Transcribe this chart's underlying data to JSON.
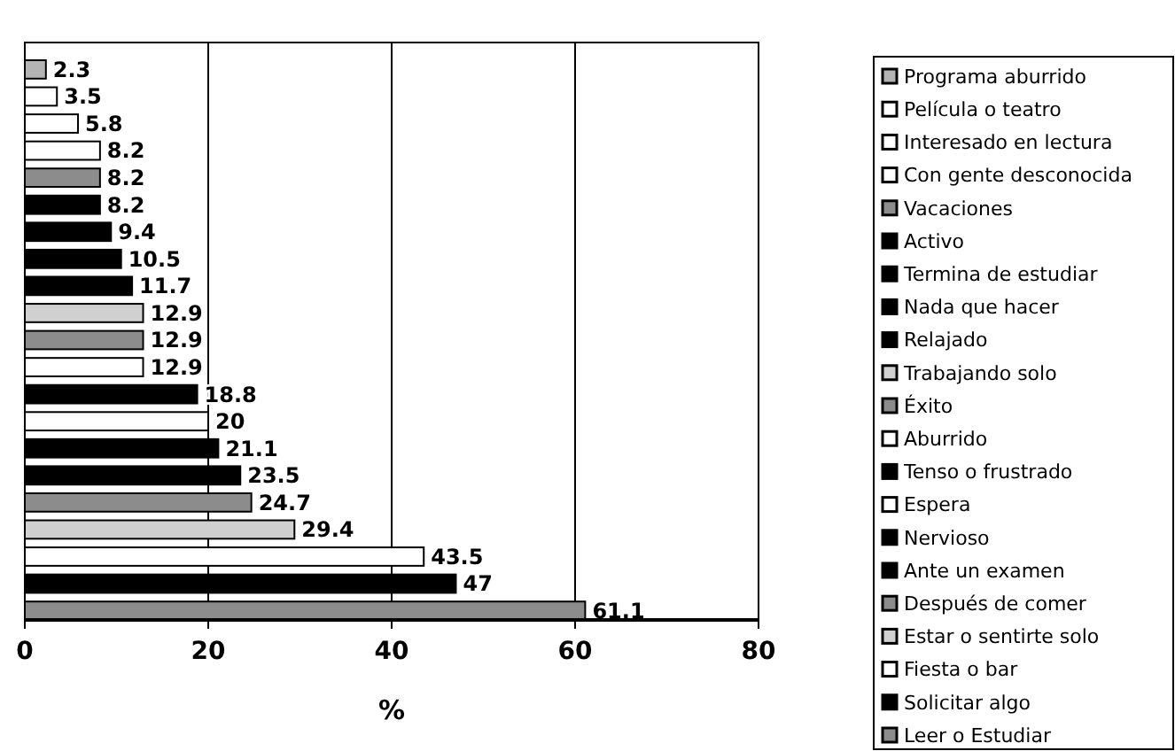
{
  "chart_data": {
    "type": "bar",
    "orientation": "horizontal",
    "xlabel": "%",
    "categories": [
      null,
      null,
      null,
      null,
      null,
      null,
      null,
      null,
      null,
      null,
      null,
      null,
      null,
      null,
      null,
      null,
      null,
      null,
      null,
      null,
      null
    ],
    "series": [
      {
        "name": "Programa aburrido",
        "color": "#b4b4b4",
        "values": [
          2.3,
          null,
          null,
          null,
          null,
          null,
          null,
          null,
          null,
          null,
          null,
          null,
          null,
          null,
          null,
          null,
          null,
          null,
          null,
          null,
          null
        ]
      },
      {
        "name": "Película o teatro",
        "color": "#ffffff",
        "values": [
          null,
          3.5,
          null,
          null,
          null,
          null,
          null,
          null,
          null,
          null,
          null,
          null,
          null,
          null,
          null,
          null,
          null,
          null,
          null,
          null,
          null
        ]
      },
      {
        "name": "Interesado en lectura",
        "color": "#ffffff",
        "values": [
          null,
          null,
          5.8,
          null,
          null,
          null,
          null,
          null,
          null,
          null,
          null,
          null,
          null,
          null,
          null,
          null,
          null,
          null,
          null,
          null,
          null
        ]
      },
      {
        "name": "Con gente desconocida",
        "color": "#ffffff",
        "values": [
          null,
          null,
          null,
          8.2,
          null,
          null,
          null,
          null,
          null,
          null,
          null,
          null,
          null,
          null,
          null,
          null,
          null,
          null,
          null,
          null,
          null
        ]
      },
      {
        "name": "Vacaciones",
        "color": "#8c8c8c",
        "values": [
          null,
          null,
          null,
          null,
          8.2,
          null,
          null,
          null,
          null,
          null,
          null,
          null,
          null,
          null,
          null,
          null,
          null,
          null,
          null,
          null,
          null
        ]
      },
      {
        "name": "Activo",
        "color": "#000000",
        "values": [
          null,
          null,
          null,
          null,
          null,
          8.2,
          null,
          null,
          null,
          null,
          null,
          null,
          null,
          null,
          null,
          null,
          null,
          null,
          null,
          null,
          null
        ]
      },
      {
        "name": "Termina de estudiar",
        "color": "#000000",
        "values": [
          null,
          null,
          null,
          null,
          null,
          null,
          9.4,
          null,
          null,
          null,
          null,
          null,
          null,
          null,
          null,
          null,
          null,
          null,
          null,
          null,
          null
        ]
      },
      {
        "name": "Nada que hacer",
        "color": "#000000",
        "values": [
          null,
          null,
          null,
          null,
          null,
          null,
          null,
          10.5,
          null,
          null,
          null,
          null,
          null,
          null,
          null,
          null,
          null,
          null,
          null,
          null,
          null
        ]
      },
      {
        "name": "Relajado",
        "color": "#000000",
        "values": [
          null,
          null,
          null,
          null,
          null,
          null,
          null,
          null,
          11.7,
          null,
          null,
          null,
          null,
          null,
          null,
          null,
          null,
          null,
          null,
          null,
          null
        ]
      },
      {
        "name": "Trabajando solo",
        "color": "#d0d0d0",
        "values": [
          null,
          null,
          null,
          null,
          null,
          null,
          null,
          null,
          null,
          12.9,
          null,
          null,
          null,
          null,
          null,
          null,
          null,
          null,
          null,
          null,
          null
        ]
      },
      {
        "name": "Éxito",
        "color": "#8c8c8c",
        "values": [
          null,
          null,
          null,
          null,
          null,
          null,
          null,
          null,
          null,
          null,
          12.9,
          null,
          null,
          null,
          null,
          null,
          null,
          null,
          null,
          null,
          null
        ]
      },
      {
        "name": "Aburrido",
        "color": "#ffffff",
        "values": [
          null,
          null,
          null,
          null,
          null,
          null,
          null,
          null,
          null,
          null,
          null,
          12.9,
          null,
          null,
          null,
          null,
          null,
          null,
          null,
          null,
          null
        ]
      },
      {
        "name": "Tenso o frustrado",
        "color": "#000000",
        "values": [
          null,
          null,
          null,
          null,
          null,
          null,
          null,
          null,
          null,
          null,
          null,
          null,
          18.8,
          null,
          null,
          null,
          null,
          null,
          null,
          null,
          null
        ]
      },
      {
        "name": "Espera",
        "color": "#ffffff",
        "values": [
          null,
          null,
          null,
          null,
          null,
          null,
          null,
          null,
          null,
          null,
          null,
          null,
          null,
          20,
          null,
          null,
          null,
          null,
          null,
          null,
          null
        ]
      },
      {
        "name": "Nervioso",
        "color": "#000000",
        "values": [
          null,
          null,
          null,
          null,
          null,
          null,
          null,
          null,
          null,
          null,
          null,
          null,
          null,
          null,
          21.1,
          null,
          null,
          null,
          null,
          null,
          null
        ]
      },
      {
        "name": "Ante un examen",
        "color": "#000000",
        "values": [
          null,
          null,
          null,
          null,
          null,
          null,
          null,
          null,
          null,
          null,
          null,
          null,
          null,
          null,
          null,
          23.5,
          null,
          null,
          null,
          null,
          null
        ]
      },
      {
        "name": "Después de comer",
        "color": "#8c8c8c",
        "values": [
          null,
          null,
          null,
          null,
          null,
          null,
          null,
          null,
          null,
          null,
          null,
          null,
          null,
          null,
          null,
          null,
          24.7,
          null,
          null,
          null,
          null
        ]
      },
      {
        "name": "Estar o sentirte solo",
        "color": "#d0d0d0",
        "values": [
          null,
          null,
          null,
          null,
          null,
          null,
          null,
          null,
          null,
          null,
          null,
          null,
          null,
          null,
          null,
          null,
          null,
          29.4,
          null,
          null,
          null
        ]
      },
      {
        "name": "Fiesta o bar",
        "color": "#ffffff",
        "values": [
          null,
          null,
          null,
          null,
          null,
          null,
          null,
          null,
          null,
          null,
          null,
          null,
          null,
          null,
          null,
          null,
          null,
          null,
          43.5,
          null,
          null
        ]
      },
      {
        "name": "Solicitar algo",
        "color": "#000000",
        "values": [
          null,
          null,
          null,
          null,
          null,
          null,
          null,
          null,
          null,
          null,
          null,
          null,
          null,
          null,
          null,
          null,
          null,
          null,
          null,
          47,
          null
        ]
      },
      {
        "name": "Leer o Estudiar",
        "color": "#8c8c8c",
        "values": [
          null,
          null,
          null,
          null,
          null,
          null,
          null,
          null,
          null,
          null,
          null,
          null,
          null,
          null,
          null,
          null,
          null,
          null,
          null,
          null,
          61.1
        ]
      }
    ],
    "xlim": [
      0,
      80
    ],
    "xticks": [
      0,
      20,
      40,
      60,
      80
    ],
    "grid": "x",
    "data_labels": true,
    "legend": "right",
    "tick_labels": "x"
  }
}
